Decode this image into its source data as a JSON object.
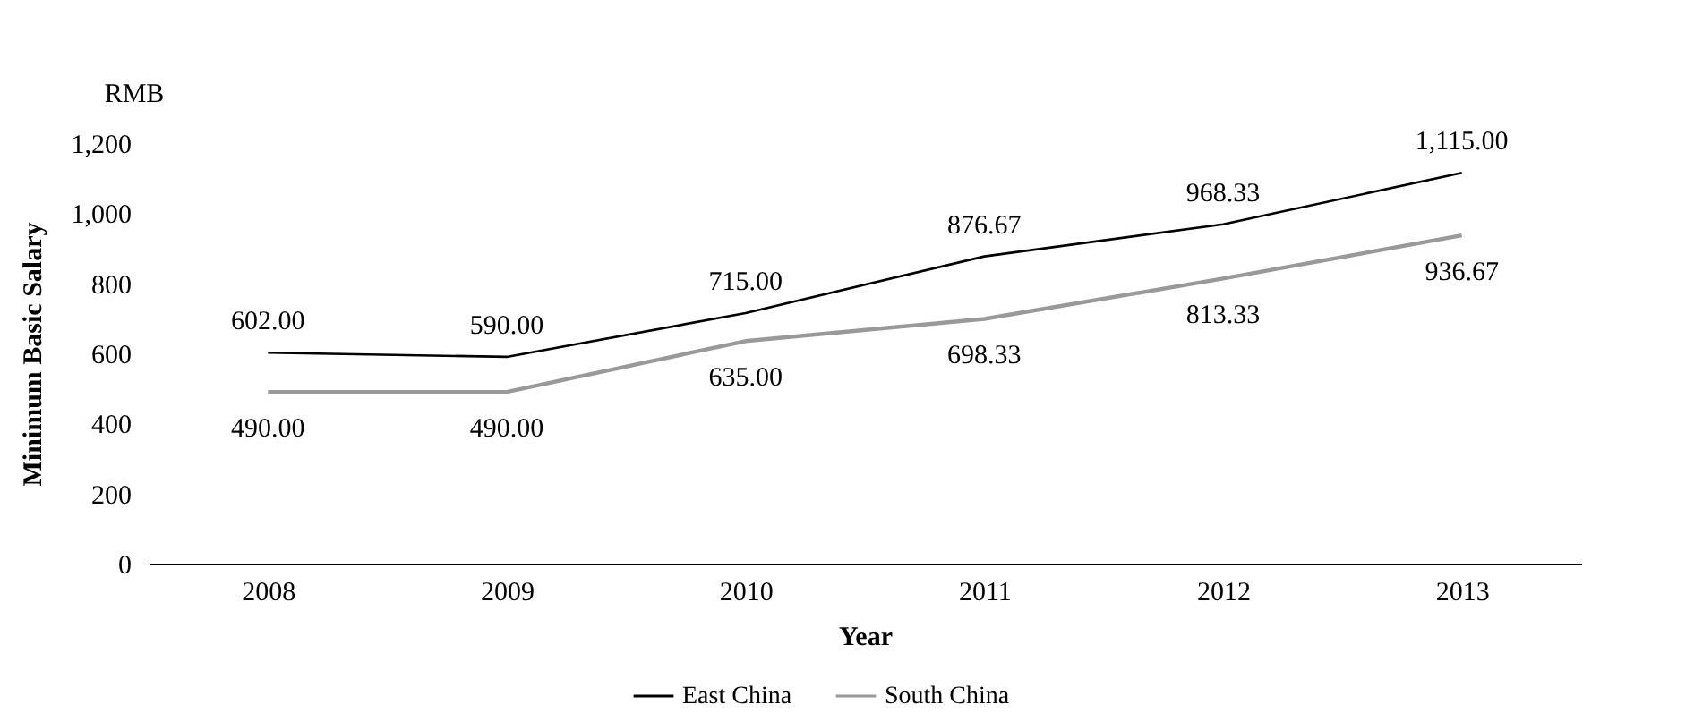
{
  "chart_data": {
    "type": "line",
    "ylabel": "Minimum Basic Salary",
    "xlabel": "Year",
    "annotations": [
      "RMB"
    ],
    "categories": [
      "2008",
      "2009",
      "2010",
      "2011",
      "2012",
      "2013"
    ],
    "series": [
      {
        "name": "East China",
        "color": "#000000",
        "values": [
          602.0,
          590.0,
          715.0,
          876.67,
          968.33,
          1115.0
        ],
        "value_labels": [
          "602.00",
          "590.00",
          "715.00",
          "876.67",
          "968.33",
          "1,115.00"
        ]
      },
      {
        "name": "South China",
        "color": "#999999",
        "values": [
          490.0,
          490.0,
          635.0,
          698.33,
          813.33,
          936.67
        ],
        "value_labels": [
          "490.00",
          "490.00",
          "635.00",
          "698.33",
          "813.33",
          "936.67"
        ]
      }
    ],
    "ylim": [
      0,
      1200
    ],
    "yticks": [
      0,
      200,
      400,
      600,
      800,
      {
        "value": 1000,
        "label": "1,000"
      },
      {
        "value": 1200,
        "label": "1,200"
      }
    ],
    "grid": false,
    "legend": "bottom",
    "marker": "none",
    "line_style": "solid"
  }
}
